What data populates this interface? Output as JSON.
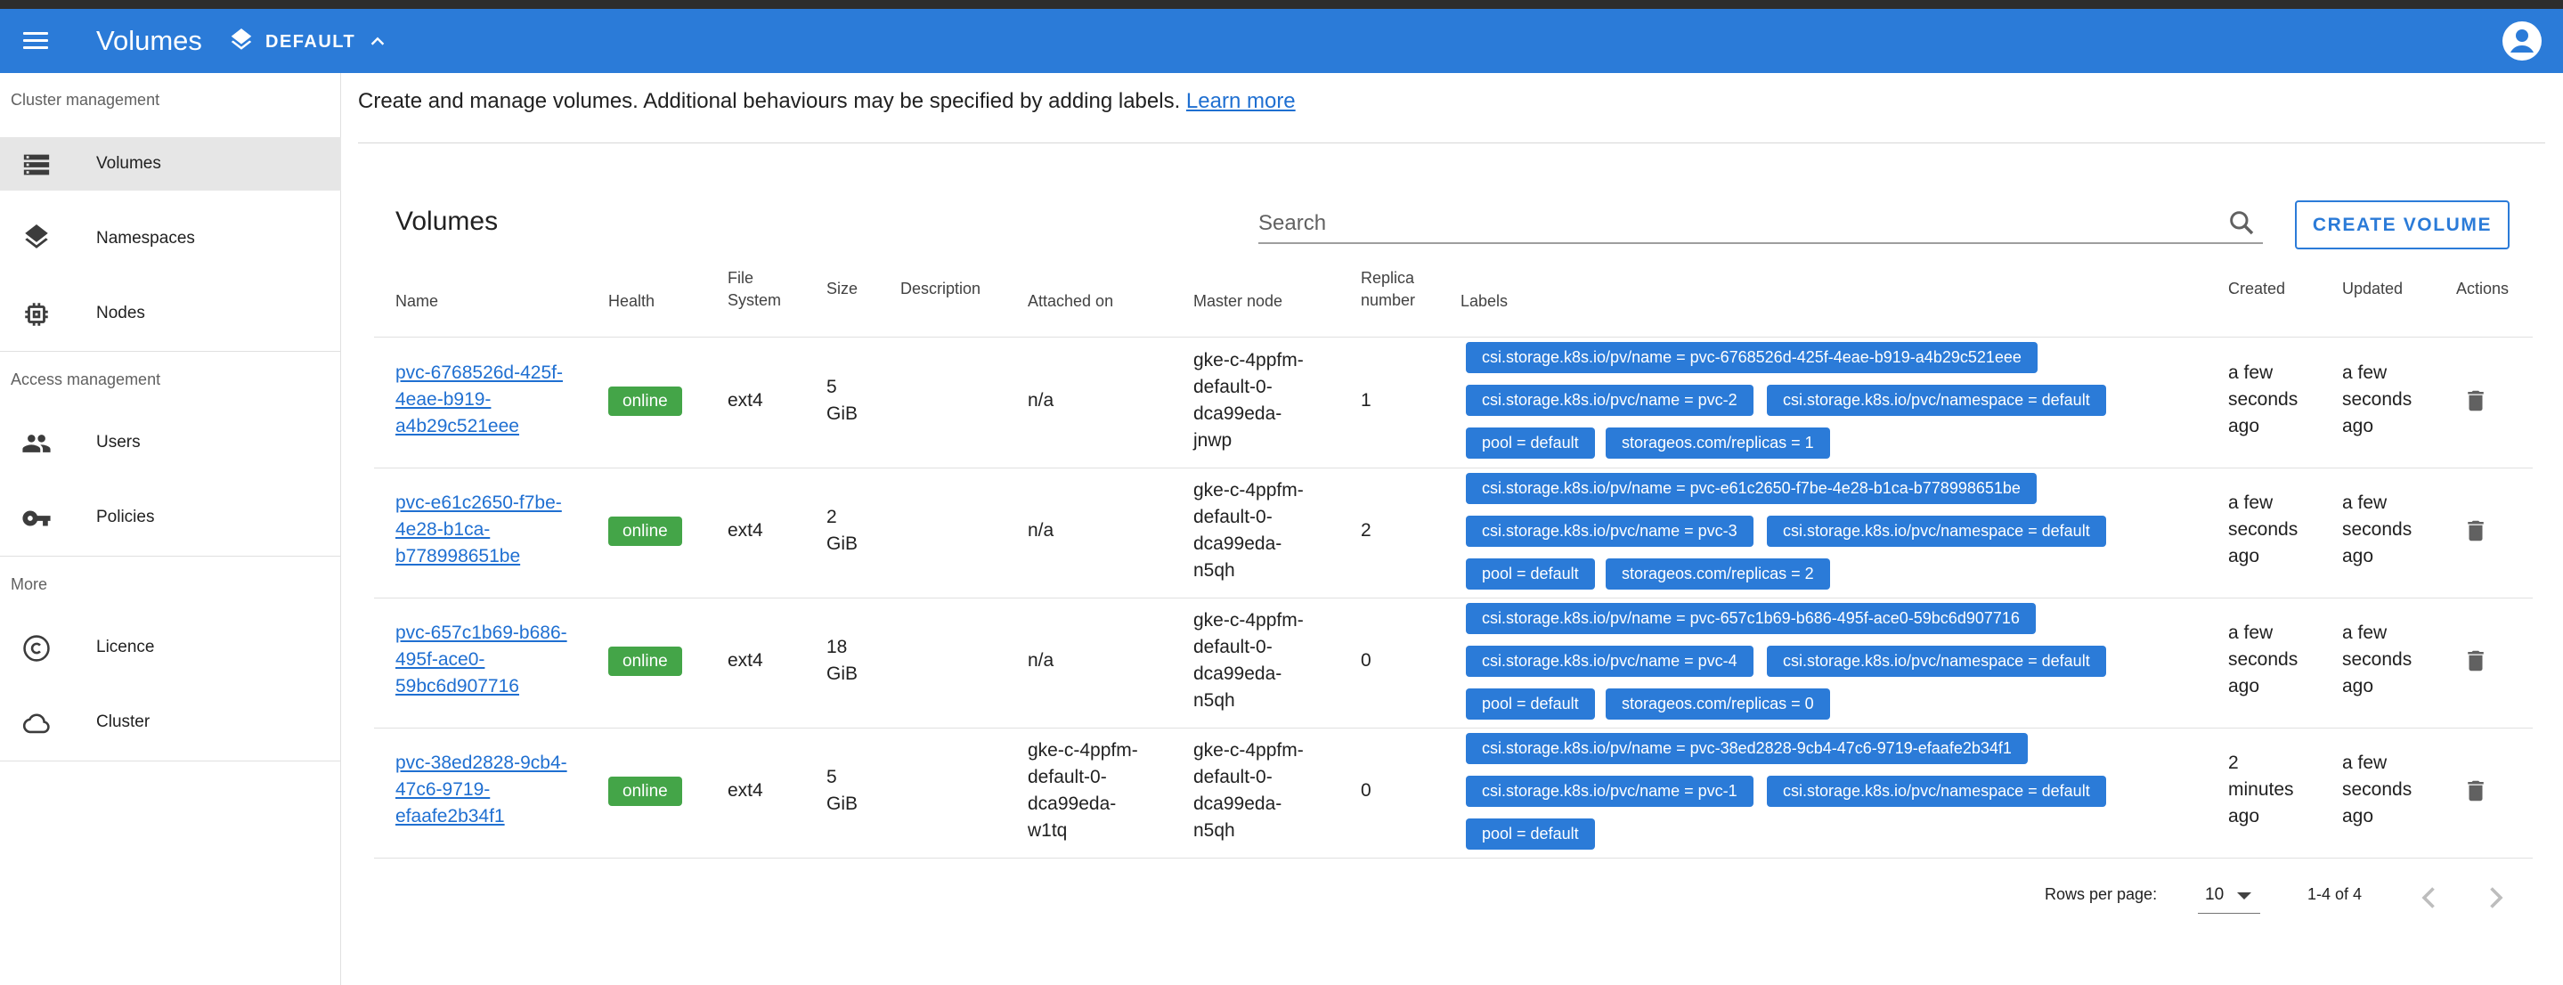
{
  "appbar": {
    "title": "Volumes",
    "namespace": "DEFAULT"
  },
  "sidebar": {
    "sections": [
      {
        "label": "Cluster management",
        "items": [
          {
            "label": "Volumes",
            "icon": "volumes-icon",
            "active": true
          },
          {
            "label": "Namespaces",
            "icon": "layers-icon"
          },
          {
            "label": "Nodes",
            "icon": "chip-icon"
          }
        ]
      },
      {
        "label": "Access management",
        "items": [
          {
            "label": "Users",
            "icon": "users-icon"
          },
          {
            "label": "Policies",
            "icon": "key-icon"
          }
        ]
      },
      {
        "label": "More",
        "items": [
          {
            "label": "Licence",
            "icon": "copyright-icon"
          },
          {
            "label": "Cluster",
            "icon": "cloud-icon"
          }
        ]
      }
    ]
  },
  "main": {
    "intro_text": "Create and manage volumes. Additional behaviours may be specified by adding labels.",
    "learn_more": "Learn more",
    "card_title": "Volumes",
    "search_placeholder": "Search",
    "create_button": "CREATE VOLUME",
    "columns": {
      "name": "Name",
      "health": "Health",
      "fs_line1": "File",
      "fs_line2": "System",
      "size": "Size",
      "description": "Description",
      "attached": "Attached on",
      "master": "Master node",
      "replica_line1": "Replica",
      "replica_line2": "number",
      "labels": "Labels",
      "created": "Created",
      "updated": "Updated",
      "actions": "Actions"
    },
    "rows": [
      {
        "name_lines": [
          "pvc-6768526d-425f-",
          "4eae-b919-",
          "a4b29c521eee"
        ],
        "health": "online",
        "fs": "ext4",
        "size_lines": [
          "5",
          "GiB"
        ],
        "description": "",
        "attached_lines": [
          "n/a"
        ],
        "master_lines": [
          "gke-c-4ppfm-",
          "default-0-",
          "dca99eda-",
          "jnwp"
        ],
        "replica": "1",
        "labels": [
          [
            "csi.storage.k8s.io/pv/name = pvc-6768526d-425f-4eae-b919-a4b29c521eee"
          ],
          [
            "csi.storage.k8s.io/pvc/name = pvc-2",
            "csi.storage.k8s.io/pvc/namespace = default"
          ],
          [
            "pool = default",
            "storageos.com/replicas = 1"
          ]
        ],
        "created_lines": [
          "a few",
          "seconds",
          "ago"
        ],
        "updated_lines": [
          "a few",
          "seconds",
          "ago"
        ]
      },
      {
        "name_lines": [
          "pvc-e61c2650-f7be-",
          "4e28-b1ca-",
          "b778998651be"
        ],
        "health": "online",
        "fs": "ext4",
        "size_lines": [
          "2",
          "GiB"
        ],
        "description": "",
        "attached_lines": [
          "n/a"
        ],
        "master_lines": [
          "gke-c-4ppfm-",
          "default-0-",
          "dca99eda-",
          "n5qh"
        ],
        "replica": "2",
        "labels": [
          [
            "csi.storage.k8s.io/pv/name = pvc-e61c2650-f7be-4e28-b1ca-b778998651be"
          ],
          [
            "csi.storage.k8s.io/pvc/name = pvc-3",
            "csi.storage.k8s.io/pvc/namespace = default"
          ],
          [
            "pool = default",
            "storageos.com/replicas = 2"
          ]
        ],
        "created_lines": [
          "a few",
          "seconds",
          "ago"
        ],
        "updated_lines": [
          "a few",
          "seconds",
          "ago"
        ]
      },
      {
        "name_lines": [
          "pvc-657c1b69-b686-",
          "495f-ace0-",
          "59bc6d907716"
        ],
        "health": "online",
        "fs": "ext4",
        "size_lines": [
          "18",
          "GiB"
        ],
        "description": "",
        "attached_lines": [
          "n/a"
        ],
        "master_lines": [
          "gke-c-4ppfm-",
          "default-0-",
          "dca99eda-",
          "n5qh"
        ],
        "replica": "0",
        "labels": [
          [
            "csi.storage.k8s.io/pv/name = pvc-657c1b69-b686-495f-ace0-59bc6d907716"
          ],
          [
            "csi.storage.k8s.io/pvc/name = pvc-4",
            "csi.storage.k8s.io/pvc/namespace = default"
          ],
          [
            "pool = default",
            "storageos.com/replicas = 0"
          ]
        ],
        "created_lines": [
          "a few",
          "seconds",
          "ago"
        ],
        "updated_lines": [
          "a few",
          "seconds",
          "ago"
        ]
      },
      {
        "name_lines": [
          "pvc-38ed2828-9cb4-",
          "47c6-9719-",
          "efaafe2b34f1"
        ],
        "health": "online",
        "fs": "ext4",
        "size_lines": [
          "5",
          "GiB"
        ],
        "description": "",
        "attached_lines": [
          "gke-c-4ppfm-",
          "default-0-",
          "dca99eda-",
          "w1tq"
        ],
        "master_lines": [
          "gke-c-4ppfm-",
          "default-0-",
          "dca99eda-",
          "n5qh"
        ],
        "replica": "0",
        "labels": [
          [
            "csi.storage.k8s.io/pv/name = pvc-38ed2828-9cb4-47c6-9719-efaafe2b34f1"
          ],
          [
            "csi.storage.k8s.io/pvc/name = pvc-1",
            "csi.storage.k8s.io/pvc/namespace = default"
          ],
          [
            "pool = default"
          ]
        ],
        "created_lines": [
          "2",
          "minutes",
          "ago"
        ],
        "updated_lines": [
          "a few",
          "seconds",
          "ago"
        ]
      }
    ],
    "footer": {
      "rows_per_page_label": "Rows per page:",
      "rows_per_page": "10",
      "range": "1-4 of 4"
    }
  }
}
